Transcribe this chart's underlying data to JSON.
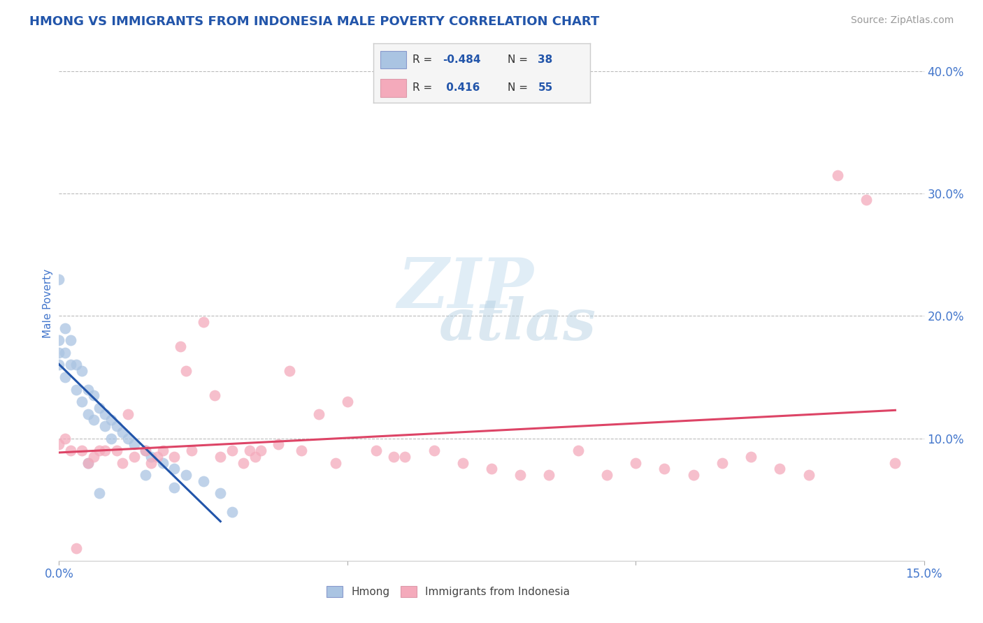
{
  "title": "HMONG VS IMMIGRANTS FROM INDONESIA MALE POVERTY CORRELATION CHART",
  "source": "Source: ZipAtlas.com",
  "ylabel_label": "Male Poverty",
  "xlim": [
    0.0,
    0.15
  ],
  "ylim": [
    0.0,
    0.42
  ],
  "hmong_R": -0.484,
  "hmong_N": 38,
  "indonesia_R": 0.416,
  "indonesia_N": 55,
  "hmong_color": "#aac4e2",
  "hmong_line_color": "#2255aa",
  "indonesia_color": "#f4aabb",
  "indonesia_line_color": "#dd4466",
  "watermark_zip_color": "#c8dff0",
  "watermark_atlas_color": "#b0cde0",
  "background_color": "#ffffff",
  "grid_color": "#bbbbbb",
  "title_color": "#2255aa",
  "axis_color": "#4477cc",
  "legend_bg": "#f5f5f5",
  "hmong_x": [
    0.0,
    0.0,
    0.0,
    0.0,
    0.001,
    0.001,
    0.001,
    0.002,
    0.002,
    0.003,
    0.003,
    0.004,
    0.004,
    0.005,
    0.005,
    0.006,
    0.006,
    0.007,
    0.008,
    0.008,
    0.009,
    0.009,
    0.01,
    0.011,
    0.012,
    0.013,
    0.015,
    0.016,
    0.018,
    0.02,
    0.022,
    0.025,
    0.028,
    0.03,
    0.015,
    0.02,
    0.005,
    0.007
  ],
  "hmong_y": [
    0.23,
    0.18,
    0.17,
    0.16,
    0.19,
    0.17,
    0.15,
    0.18,
    0.16,
    0.16,
    0.14,
    0.155,
    0.13,
    0.14,
    0.12,
    0.135,
    0.115,
    0.125,
    0.12,
    0.11,
    0.115,
    0.1,
    0.11,
    0.105,
    0.1,
    0.095,
    0.09,
    0.085,
    0.08,
    0.075,
    0.07,
    0.065,
    0.055,
    0.04,
    0.07,
    0.06,
    0.08,
    0.055
  ],
  "indonesia_x": [
    0.0,
    0.001,
    0.002,
    0.003,
    0.004,
    0.005,
    0.006,
    0.007,
    0.008,
    0.01,
    0.011,
    0.012,
    0.013,
    0.015,
    0.016,
    0.017,
    0.018,
    0.02,
    0.021,
    0.022,
    0.023,
    0.025,
    0.027,
    0.028,
    0.03,
    0.032,
    0.033,
    0.034,
    0.035,
    0.038,
    0.04,
    0.042,
    0.045,
    0.048,
    0.05,
    0.055,
    0.058,
    0.06,
    0.065,
    0.07,
    0.075,
    0.08,
    0.085,
    0.09,
    0.095,
    0.1,
    0.105,
    0.11,
    0.115,
    0.12,
    0.125,
    0.13,
    0.135,
    0.14,
    0.145
  ],
  "indonesia_y": [
    0.095,
    0.1,
    0.09,
    0.01,
    0.09,
    0.08,
    0.085,
    0.09,
    0.09,
    0.09,
    0.08,
    0.12,
    0.085,
    0.09,
    0.08,
    0.085,
    0.09,
    0.085,
    0.175,
    0.155,
    0.09,
    0.195,
    0.135,
    0.085,
    0.09,
    0.08,
    0.09,
    0.085,
    0.09,
    0.095,
    0.155,
    0.09,
    0.12,
    0.08,
    0.13,
    0.09,
    0.085,
    0.085,
    0.09,
    0.08,
    0.075,
    0.07,
    0.07,
    0.09,
    0.07,
    0.08,
    0.075,
    0.07,
    0.08,
    0.085,
    0.075,
    0.07,
    0.315,
    0.295,
    0.08
  ]
}
